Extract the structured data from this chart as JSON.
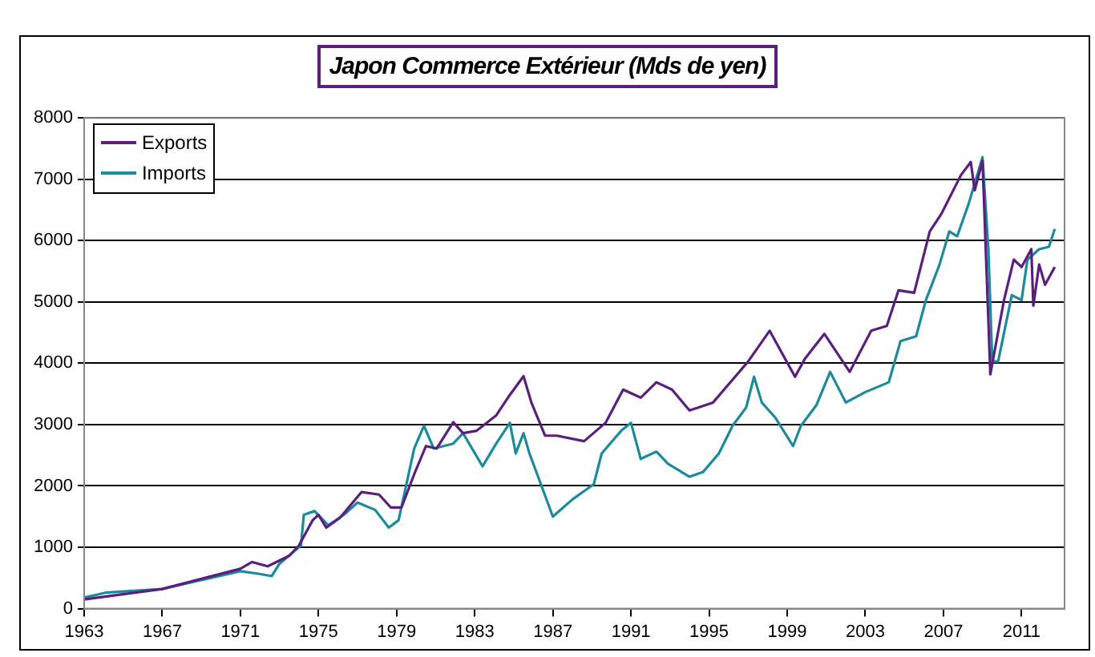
{
  "chart_data": {
    "type": "line",
    "title": "Japon Commerce Extérieur (Mds de yen)",
    "xlim": [
      1963,
      2013.2
    ],
    "xticks": [
      1963,
      1967,
      1971,
      1975,
      1979,
      1983,
      1987,
      1991,
      1995,
      1999,
      2003,
      2007,
      2011
    ],
    "ylim": [
      0,
      8000
    ],
    "yticks": [
      0,
      1000,
      2000,
      3000,
      4000,
      5000,
      6000,
      7000,
      8000
    ],
    "grid": "y",
    "legend": "top left",
    "series": [
      {
        "name": "Exports",
        "color": "#5c1e7c",
        "x": [
          1963,
          1967,
          1971,
          1971.6,
          1972.4,
          1973.5,
          1974,
          1974.7,
          1975,
          1975.4,
          1976.1,
          1977.2,
          1978.1,
          1978.7,
          1979.25,
          1979.9,
          1980.5,
          1981.05,
          1981.9,
          1982.4,
          1983.1,
          1984.1,
          1984.7,
          1985.5,
          1985.9,
          1986.6,
          1987.2,
          1988.6,
          1989.7,
          1990.6,
          1991.5,
          1992.3,
          1993.1,
          1994,
          1995.2,
          1996.2,
          1997,
          1998.1,
          1999.4,
          1999.9,
          2000.9,
          2002.2,
          2003.3,
          2004.1,
          2004.7,
          2005.5,
          2006.3,
          2006.9,
          2007.9,
          2008.4,
          2008.6,
          2009,
          2009.4,
          2010.1,
          2010.6,
          2011,
          2011.5,
          2011.6,
          2011.9,
          2012.2,
          2012.7
        ],
        "values": [
          150,
          320,
          650,
          760,
          690,
          860,
          1030,
          1440,
          1530,
          1320,
          1480,
          1900,
          1860,
          1650,
          1650,
          2190,
          2650,
          2610,
          3040,
          2860,
          2900,
          3150,
          3440,
          3790,
          3360,
          2820,
          2820,
          2730,
          3030,
          3570,
          3440,
          3690,
          3570,
          3230,
          3360,
          3730,
          4030,
          4530,
          3780,
          4070,
          4480,
          3860,
          4530,
          4610,
          5190,
          5150,
          6150,
          6440,
          7070,
          7280,
          6820,
          7300,
          3820,
          5030,
          5690,
          5570,
          5860,
          4940,
          5610,
          5280,
          5570
        ]
      },
      {
        "name": "Imports",
        "color": "#1b8a9c",
        "x": [
          1963,
          1964.1,
          1967,
          1971,
          1971.9,
          1972.6,
          1973,
          1974.1,
          1974.25,
          1974.8,
          1975.5,
          1976.3,
          1977,
          1977.9,
          1978.6,
          1979.1,
          1979.9,
          1980.4,
          1980.9,
          1981.9,
          1982.4,
          1983.4,
          1984.1,
          1984.8,
          1985.1,
          1985.5,
          1985.8,
          1986.2,
          1987,
          1988,
          1989.1,
          1989.5,
          1990.5,
          1991,
          1991.5,
          1992.3,
          1992.9,
          1994,
          1994.7,
          1995.5,
          1996.2,
          1996.9,
          1997.3,
          1997.7,
          1998.4,
          1999.3,
          1999.7,
          2000.5,
          2001.2,
          2002,
          2003,
          2004.2,
          2004.8,
          2005.6,
          2006.1,
          2006.8,
          2007.3,
          2007.7,
          2008.3,
          2009,
          2009.3,
          2009.5,
          2009.8,
          2010.5,
          2011,
          2011.3,
          2011.9,
          2012.4,
          2012.7
        ],
        "values": [
          180,
          260,
          320,
          610,
          570,
          530,
          730,
          1030,
          1530,
          1590,
          1360,
          1530,
          1730,
          1610,
          1320,
          1440,
          2610,
          2980,
          2610,
          2690,
          2860,
          2320,
          2690,
          3030,
          2530,
          2860,
          2530,
          2190,
          1500,
          1780,
          2030,
          2530,
          2900,
          3030,
          2440,
          2560,
          2360,
          2150,
          2230,
          2530,
          2980,
          3280,
          3780,
          3360,
          3110,
          2650,
          2980,
          3320,
          3860,
          3360,
          3530,
          3690,
          4360,
          4440,
          5030,
          5610,
          6150,
          6070,
          6610,
          7360,
          5860,
          4030,
          4030,
          5110,
          5030,
          5690,
          5860,
          5900,
          6190
        ]
      }
    ]
  }
}
